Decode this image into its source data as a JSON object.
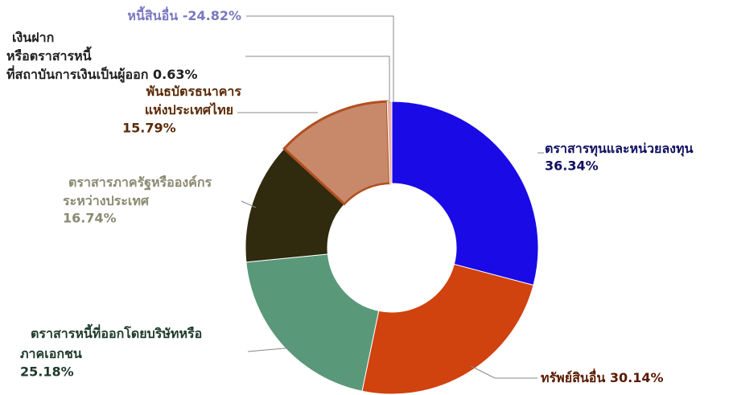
{
  "chart_data": {
    "type": "donut",
    "categories": [
      [
        "ตราสารทุนและหน่วยลงทุน"
      ],
      [
        "ทรัพย์สินอื่น"
      ],
      [
        "ตราสารหนี้ที่ออกโดยบริษัทหรือ",
        "ภาคเอกชน"
      ],
      [
        "ตราสารภาครัฐหรือองค์กร",
        "ระหว่างประเทศ"
      ],
      [
        "พันธบัตรธนาคาร",
        "แห่งประเทศไทย"
      ],
      [
        "เงินฝาก",
        "หรือตราสารหนี้",
        "ที่สถาบันการเงินเป็นผู้ออก"
      ],
      [
        "หนี้สินอื่น"
      ]
    ],
    "values": [
      36.34,
      30.14,
      25.18,
      16.74,
      15.79,
      0.63,
      -24.82
    ],
    "value_labels": [
      "36.34%",
      "30.14%",
      "25.18%",
      "16.74%",
      "15.79%",
      "0.63%",
      "-24.82%"
    ],
    "colors": [
      "#1a0ae6",
      "#d0420e",
      "#5a987a",
      "#302a0e",
      "#c8886a",
      "#e8b0a8",
      "#8080c8"
    ],
    "label_colors": [
      "#101060",
      "#5a1a00",
      "#1e3a2c",
      "#8a8a72",
      "#5a2a08",
      "#202020",
      "#7a78c0"
    ]
  }
}
